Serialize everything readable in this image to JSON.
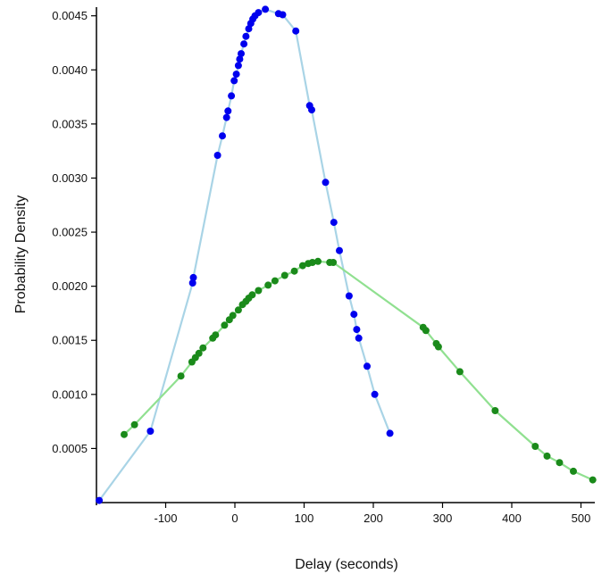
{
  "chart_data": {
    "type": "scatter",
    "title": "",
    "xlabel": "Delay (seconds)",
    "ylabel": "Probability Density",
    "xlim": [
      -200,
      520
    ],
    "ylim": [
      0.0,
      0.00458
    ],
    "x_ticks": [
      {
        "value": -100,
        "label": "-100"
      },
      {
        "value": 0,
        "label": "0"
      },
      {
        "value": 100,
        "label": "100"
      },
      {
        "value": 200,
        "label": "200"
      },
      {
        "value": 300,
        "label": "300"
      },
      {
        "value": 400,
        "label": "400"
      },
      {
        "value": 500,
        "label": "500"
      }
    ],
    "y_ticks": [
      {
        "value": 0.0005,
        "label": "0.0005"
      },
      {
        "value": 0.001,
        "label": "0.0010"
      },
      {
        "value": 0.0015,
        "label": "0.0015"
      },
      {
        "value": 0.002,
        "label": "0.0020"
      },
      {
        "value": 0.0025,
        "label": "0.0025"
      },
      {
        "value": 0.003,
        "label": "0.0030"
      },
      {
        "value": 0.0035,
        "label": "0.0035"
      },
      {
        "value": 0.004,
        "label": "0.0040"
      },
      {
        "value": 0.0045,
        "label": "0.0045"
      }
    ],
    "grid": false,
    "legend": "none",
    "series": [
      {
        "color": "#0000ee",
        "line_color": "#a9d4e6",
        "points": [
          [
            -196,
            2e-05
          ],
          [
            -122,
            0.00066
          ],
          [
            -61,
            0.00203
          ],
          [
            -60,
            0.00208
          ],
          [
            -25,
            0.00321
          ],
          [
            -18,
            0.00339
          ],
          [
            -12,
            0.00356
          ],
          [
            -10,
            0.00362
          ],
          [
            -5,
            0.00376
          ],
          [
            -1,
            0.0039
          ],
          [
            2,
            0.00396
          ],
          [
            5,
            0.00404
          ],
          [
            7,
            0.0041
          ],
          [
            9,
            0.00415
          ],
          [
            13,
            0.00424
          ],
          [
            16,
            0.00431
          ],
          [
            20,
            0.00438
          ],
          [
            23,
            0.00443
          ],
          [
            26,
            0.00447
          ],
          [
            29,
            0.0045
          ],
          [
            34,
            0.00453
          ],
          [
            44,
            0.00456
          ],
          [
            63,
            0.00452
          ],
          [
            69,
            0.00451
          ],
          [
            88,
            0.00436
          ],
          [
            108,
            0.00367
          ],
          [
            111,
            0.00363
          ],
          [
            131,
            0.00296
          ],
          [
            143,
            0.00259
          ],
          [
            151,
            0.00233
          ],
          [
            165,
            0.00191
          ],
          [
            172,
            0.00174
          ],
          [
            176,
            0.0016
          ],
          [
            179,
            0.00152
          ],
          [
            191,
            0.00126
          ],
          [
            202,
            0.001
          ],
          [
            224,
            0.00064
          ]
        ]
      },
      {
        "color": "#1a8a1a",
        "line_color": "#90e090",
        "points": [
          [
            -160,
            0.00063
          ],
          [
            -145,
            0.00072
          ],
          [
            -78,
            0.00117
          ],
          [
            -62,
            0.0013
          ],
          [
            -57,
            0.00134
          ],
          [
            -52,
            0.00138
          ],
          [
            -46,
            0.00143
          ],
          [
            -32,
            0.00152
          ],
          [
            -28,
            0.00155
          ],
          [
            -15,
            0.00164
          ],
          [
            -8,
            0.00169
          ],
          [
            -3,
            0.00173
          ],
          [
            5,
            0.00178
          ],
          [
            11,
            0.00183
          ],
          [
            16,
            0.00186
          ],
          [
            20,
            0.00189
          ],
          [
            25,
            0.00192
          ],
          [
            34,
            0.00196
          ],
          [
            48,
            0.00201
          ],
          [
            58,
            0.00205
          ],
          [
            72,
            0.0021
          ],
          [
            86,
            0.00214
          ],
          [
            98,
            0.00219
          ],
          [
            106,
            0.00221
          ],
          [
            112,
            0.00222
          ],
          [
            120,
            0.00223
          ],
          [
            137,
            0.00222
          ],
          [
            142,
            0.00222
          ],
          [
            272,
            0.00162
          ],
          [
            276,
            0.00159
          ],
          [
            291,
            0.00147
          ],
          [
            294,
            0.00144
          ],
          [
            325,
            0.00121
          ],
          [
            376,
            0.00085
          ],
          [
            434,
            0.00052
          ],
          [
            451,
            0.00043
          ],
          [
            469,
            0.00037
          ],
          [
            489,
            0.00029
          ],
          [
            517,
            0.00021
          ]
        ]
      }
    ]
  }
}
